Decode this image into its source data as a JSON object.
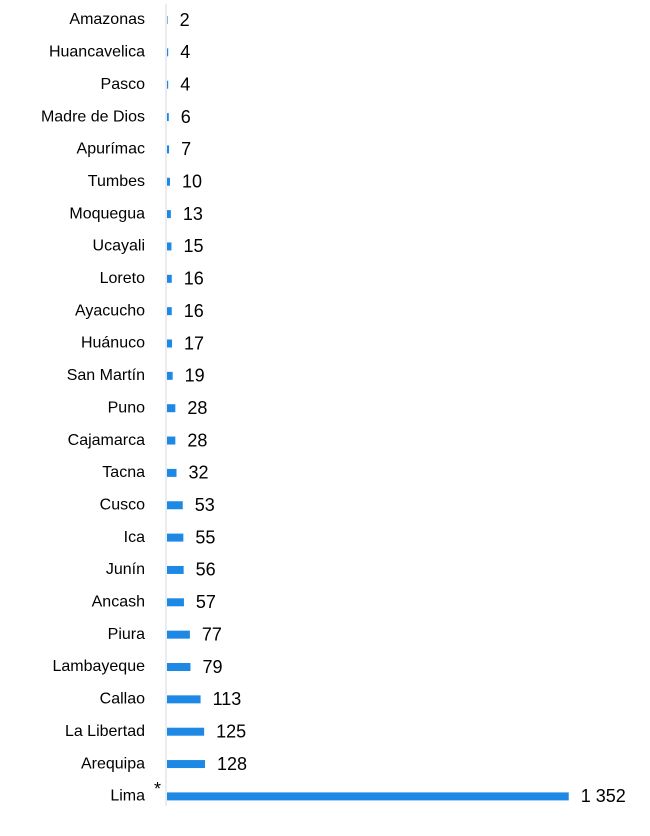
{
  "chart_data": {
    "type": "barh",
    "categories": [
      "Amazonas",
      "Huancavelica",
      "Pasco",
      "Madre de Dios",
      "Apurímac",
      "Tumbes",
      "Moquegua",
      "Ucayali",
      "Loreto",
      "Ayacucho",
      "Huánuco",
      "San Martín",
      "Puno",
      "Cajamarca",
      "Tacna",
      "Cusco",
      "Ica",
      "Junín",
      "Ancash",
      "Piura",
      "Lambayeque",
      "Callao",
      "La Libertad",
      "Arequipa",
      "Lima"
    ],
    "values": [
      2,
      4,
      4,
      6,
      7,
      10,
      13,
      15,
      16,
      16,
      17,
      19,
      28,
      28,
      32,
      53,
      55,
      56,
      57,
      77,
      79,
      113,
      125,
      128,
      1352
    ],
    "value_labels": [
      "2",
      "4",
      "4",
      "6",
      "7",
      "10",
      "13",
      "15",
      "16",
      "16",
      "17",
      "19",
      "28",
      "28",
      "32",
      "53",
      "55",
      "56",
      "57",
      "77",
      "79",
      "113",
      "125",
      "128",
      "1 352"
    ],
    "annotation": "*",
    "color": "#1e88e5",
    "xlim": [
      0,
      1400
    ]
  }
}
